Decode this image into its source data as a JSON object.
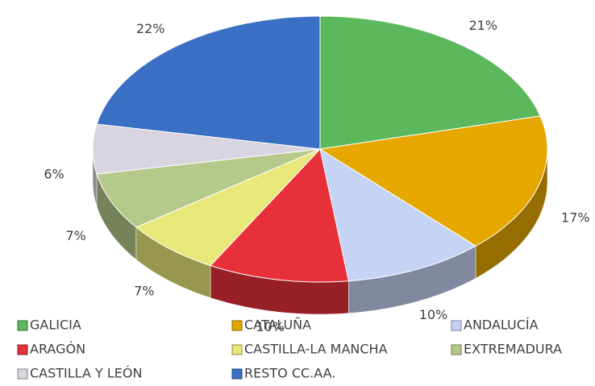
{
  "chart_data": {
    "type": "pie3d",
    "categories": [
      "GALICIA",
      "CATALUÑA",
      "ANDALUCÍA",
      "ARAGÓN",
      "CASTILLA-LA MANCHA",
      "EXTREMADURA",
      "CASTILLA Y LEÓN",
      "RESTO CC.AA."
    ],
    "values": [
      21,
      17,
      10,
      10,
      7,
      7,
      6,
      22
    ],
    "value_labels": [
      "21%",
      "17%",
      "10%",
      "10%",
      "7%",
      "7%",
      "6%",
      "22%"
    ],
    "colors": [
      "#5cb85c",
      "#e6a800",
      "#c5d3f5",
      "#e8303a",
      "#e8e87a",
      "#b5c98a",
      "#d8d4e0",
      "#3a6fc4"
    ],
    "legend": "bottom"
  }
}
